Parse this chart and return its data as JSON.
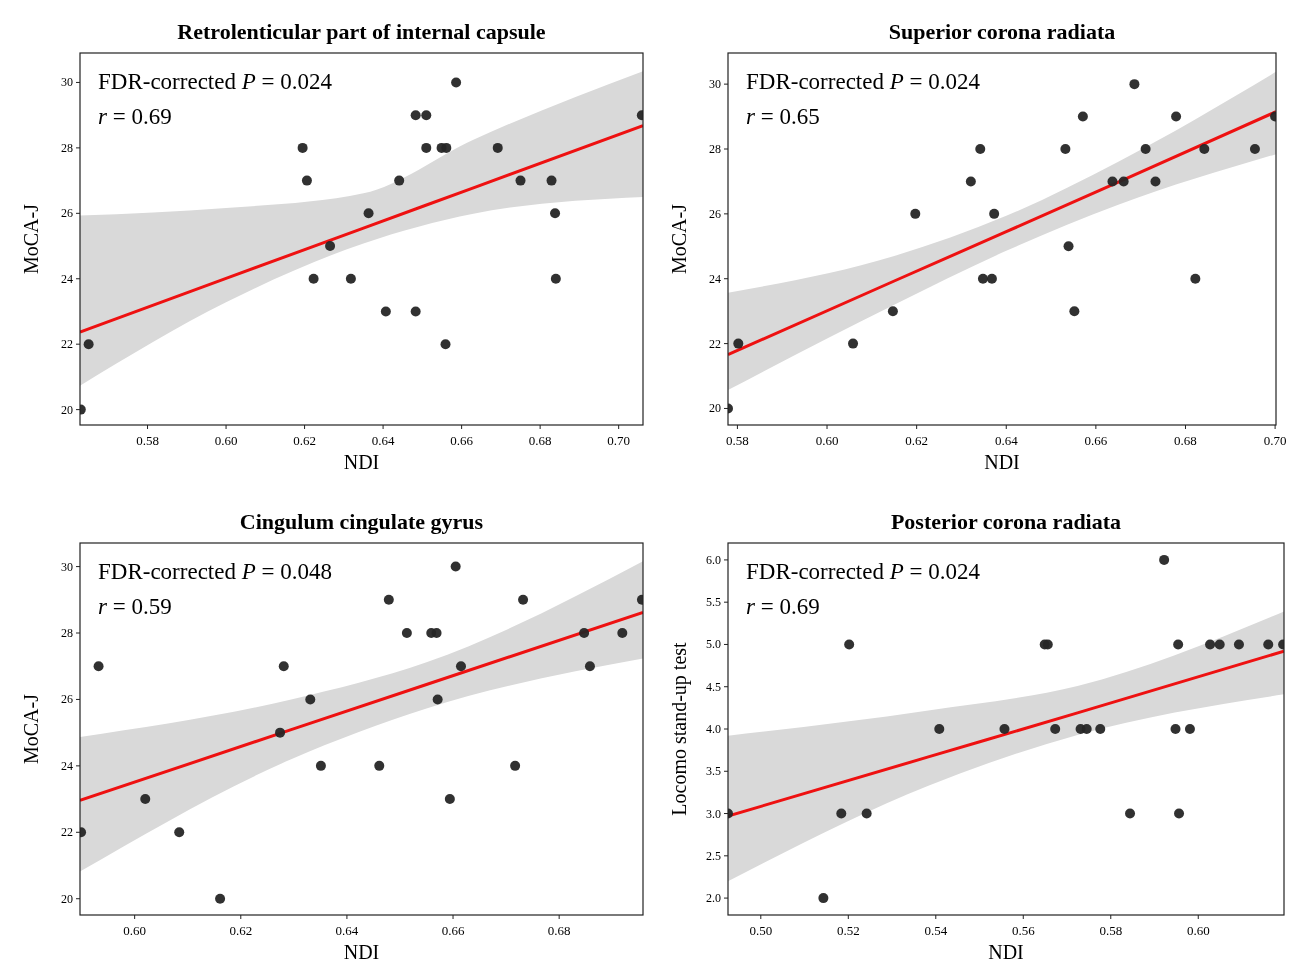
{
  "chart_data": [
    {
      "type": "scatter",
      "title": "Retrolenticular part of internal capsule",
      "xlabel": "NDI",
      "ylabel": "MoCA-J",
      "annotations": [
        "FDR-corrected P = 0.024",
        "r = 0.69"
      ],
      "xlim": [
        0.5628,
        0.7062
      ],
      "ylim": [
        19.53,
        30.9
      ],
      "xticks": [
        {
          "value": 0.58,
          "label": "0.58"
        },
        {
          "value": 0.6,
          "label": "0.60"
        },
        {
          "value": 0.62,
          "label": "0.62"
        },
        {
          "value": 0.64,
          "label": "0.64"
        },
        {
          "value": 0.66,
          "label": "0.66"
        },
        {
          "value": 0.68,
          "label": "0.68"
        },
        {
          "value": 0.7,
          "label": "0.70"
        }
      ],
      "yticks": [
        20,
        22,
        24,
        26,
        28,
        30
      ],
      "marker": "circle",
      "grid": false,
      "series": [
        {
          "color": "#262626",
          "x": [
            0.563,
            0.565,
            0.6195,
            0.6206,
            0.6223,
            0.6265,
            0.6318,
            0.6363,
            0.6407,
            0.6441,
            0.6483,
            0.6483,
            0.651,
            0.651,
            0.6549,
            0.6561,
            0.6559,
            0.6586,
            0.6692,
            0.675,
            0.6829,
            0.6838,
            0.684,
            0.7059
          ],
          "values": [
            20,
            22,
            28,
            27,
            24,
            25,
            24,
            26,
            23,
            27,
            29,
            23,
            29,
            28,
            28,
            28,
            22,
            30,
            28,
            27,
            27,
            26,
            24,
            29
          ]
        },
        {
          "type": "line",
          "marker": "none",
          "color": "#ee1111",
          "x": [
            0.5628,
            0.6,
            0.635,
            0.663,
            0.7062
          ],
          "values": [
            22.37,
            24.01,
            25.55,
            26.78,
            28.68
          ],
          "lower": [
            20.73,
            23.28,
            25.08,
            25.99,
            26.5
          ],
          "upper": [
            25.93,
            26.16,
            26.61,
            28.25,
            30.34
          ]
        }
      ]
    },
    {
      "type": "scatter",
      "title": "Superior corona radiata",
      "xlabel": "NDI",
      "ylabel": "MoCA-J",
      "annotations": [
        "FDR-corrected P = 0.024",
        "r = 0.65"
      ],
      "xlim": [
        0.5779,
        0.7002
      ],
      "ylim": [
        19.49,
        30.96
      ],
      "xticks": [
        {
          "value": 0.58,
          "label": "0.58"
        },
        {
          "value": 0.6,
          "label": "0.60"
        },
        {
          "value": 0.62,
          "label": "0.62"
        },
        {
          "value": 0.64,
          "label": "0.64"
        },
        {
          "value": 0.66,
          "label": "0.66"
        },
        {
          "value": 0.68,
          "label": "0.68"
        },
        {
          "value": 0.7,
          "label": "0.70"
        }
      ],
      "yticks": [
        20,
        22,
        24,
        26,
        28,
        30
      ],
      "marker": "circle",
      "grid": false,
      "series": [
        {
          "color": "#262626",
          "x": [
            0.5779,
            0.5802,
            0.6058,
            0.6147,
            0.6197,
            0.6321,
            0.6342,
            0.6348,
            0.6368,
            0.6373,
            0.6532,
            0.6539,
            0.6552,
            0.6571,
            0.6637,
            0.6662,
            0.6686,
            0.6711,
            0.6733,
            0.6779,
            0.6822,
            0.6842,
            0.6955,
            0.7
          ],
          "values": [
            20,
            22,
            22,
            23,
            26,
            27,
            28,
            24,
            24,
            26,
            28,
            25,
            23,
            29,
            27,
            27,
            30,
            28,
            27,
            29,
            24,
            28,
            28,
            29
          ]
        },
        {
          "type": "line",
          "marker": "none",
          "color": "#ee1111",
          "x": [
            0.5779,
            0.615,
            0.64,
            0.665,
            0.7002
          ],
          "values": [
            21.66,
            23.93,
            25.45,
            26.98,
            29.15
          ],
          "lower": [
            20.57,
            23.2,
            24.86,
            26.28,
            27.84
          ],
          "upper": [
            23.57,
            24.7,
            25.94,
            27.61,
            30.38
          ]
        }
      ]
    },
    {
      "type": "scatter",
      "title": "Cingulum cingulate gyrus",
      "xlabel": "NDI",
      "ylabel": "MoCA-J",
      "annotations": [
        "FDR-corrected P = 0.048",
        "r = 0.59"
      ],
      "xlim": [
        0.5897,
        0.6958
      ],
      "ylim": [
        19.51,
        30.71
      ],
      "xticks": [
        {
          "value": 0.6,
          "label": "0.60"
        },
        {
          "value": 0.62,
          "label": "0.62"
        },
        {
          "value": 0.64,
          "label": "0.64"
        },
        {
          "value": 0.66,
          "label": "0.66"
        },
        {
          "value": 0.68,
          "label": "0.68"
        }
      ],
      "yticks": [
        20,
        22,
        24,
        26,
        28,
        30
      ],
      "marker": "circle",
      "grid": false,
      "series": [
        {
          "color": "#262626",
          "x": [
            0.5899,
            0.5932,
            0.602,
            0.6084,
            0.6161,
            0.6274,
            0.6281,
            0.6331,
            0.6351,
            0.6461,
            0.6479,
            0.6513,
            0.6559,
            0.6569,
            0.6571,
            0.6594,
            0.6605,
            0.6615,
            0.6717,
            0.6732,
            0.6847,
            0.6858,
            0.6919,
            0.6956
          ],
          "values": [
            22,
            27,
            23,
            22,
            20,
            25,
            27,
            26,
            24,
            24,
            29,
            28,
            28,
            28,
            26,
            23,
            30,
            27,
            24,
            29,
            28,
            27,
            28,
            29
          ]
        },
        {
          "type": "line",
          "marker": "none",
          "color": "#ee1111",
          "x": [
            0.5897,
            0.6295,
            0.655,
            0.6958
          ],
          "values": [
            22.96,
            25.09,
            26.45,
            28.62
          ],
          "lower": [
            20.82,
            24.2,
            25.73,
            27.23
          ],
          "upper": [
            24.87,
            26.0,
            27.12,
            30.16
          ]
        }
      ]
    },
    {
      "type": "scatter",
      "title": "Posterior corona radiata",
      "xlabel": "NDI",
      "ylabel": "Locomo stand-up test",
      "annotations": [
        "FDR-corrected P = 0.024",
        "r = 0.69"
      ],
      "xlim": [
        0.4925,
        0.6196
      ],
      "ylim": [
        1.8,
        6.2
      ],
      "xticks": [
        {
          "value": 0.5,
          "label": "0.50"
        },
        {
          "value": 0.52,
          "label": "0.52"
        },
        {
          "value": 0.54,
          "label": "0.54"
        },
        {
          "value": 0.56,
          "label": "0.56"
        },
        {
          "value": 0.58,
          "label": "0.58"
        },
        {
          "value": 0.6,
          "label": "0.60"
        }
      ],
      "yticks": [
        {
          "value": 2,
          "label": "2.0"
        },
        {
          "value": 2.5,
          "label": "2.5"
        },
        {
          "value": 3,
          "label": "3.0"
        },
        {
          "value": 3.5,
          "label": "3.5"
        },
        {
          "value": 4,
          "label": "4.0"
        },
        {
          "value": 4.5,
          "label": "4.5"
        },
        {
          "value": 5,
          "label": "5.0"
        },
        {
          "value": 5.5,
          "label": "5.5"
        },
        {
          "value": 6,
          "label": "6.0"
        }
      ],
      "marker": "circle",
      "grid": false,
      "series": [
        {
          "color": "#262626",
          "x": [
            0.4925,
            0.5143,
            0.5184,
            0.5202,
            0.5242,
            0.5408,
            0.5557,
            0.5649,
            0.5656,
            0.5673,
            0.5731,
            0.5745,
            0.5776,
            0.5844,
            0.5922,
            0.5948,
            0.5954,
            0.5956,
            0.5981,
            0.6027,
            0.6049,
            0.6093,
            0.616,
            0.6194
          ],
          "values": [
            3,
            2,
            3,
            5,
            3,
            4,
            4,
            5,
            5,
            4,
            4,
            4,
            4,
            3,
            6,
            4,
            5,
            3,
            4,
            5,
            5,
            5,
            5,
            5
          ]
        },
        {
          "type": "line",
          "marker": "none",
          "color": "#ee1111",
          "x": [
            0.4925,
            0.5383,
            0.5724,
            0.6196
          ],
          "values": [
            2.97,
            3.67,
            4.19,
            4.92
          ],
          "lower": [
            2.2,
            3.33,
            3.93,
            4.41
          ],
          "upper": [
            3.92,
            4.22,
            4.51,
            5.39
          ]
        }
      ]
    }
  ]
}
